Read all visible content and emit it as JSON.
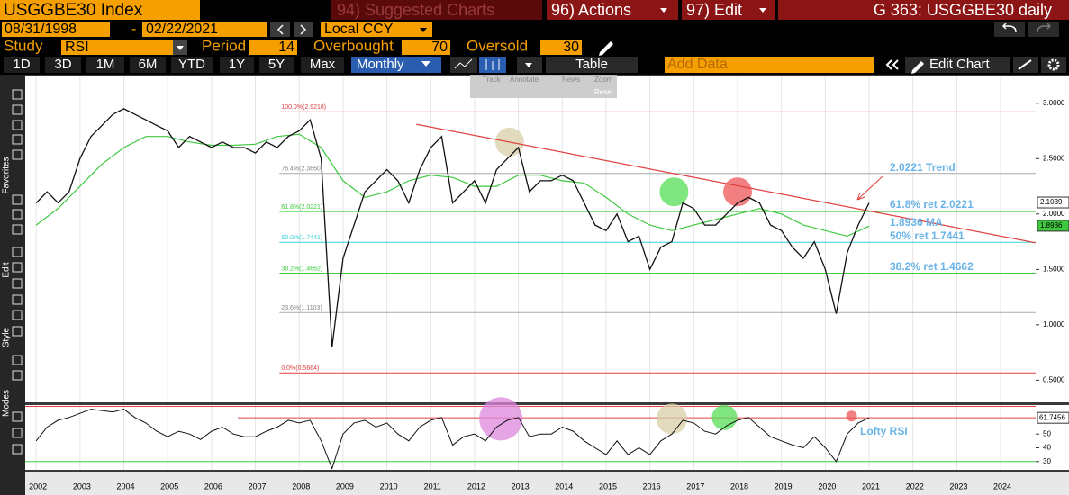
{
  "header": {
    "ticker": "USGGBE30 Index",
    "suggested": "94) Suggested Charts",
    "actions": "96) Actions",
    "edit": "97) Edit",
    "title": "G 363: USGGBE30 daily"
  },
  "dates": {
    "start": "08/31/1998",
    "separator": "-",
    "end": "02/22/2021",
    "currency": "Local CCY"
  },
  "study": {
    "label": "Study",
    "value": "RSI",
    "period_label": "Period",
    "period": "14",
    "overbought_label": "Overbought",
    "overbought": "70",
    "oversold_label": "Oversold",
    "oversold": "30"
  },
  "toolbar": {
    "ranges": [
      "1D",
      "3D",
      "1M",
      "6M",
      "YTD",
      "1Y",
      "5Y",
      "Max"
    ],
    "frequency": "Monthly",
    "table": "Table",
    "add_data": "Add Data",
    "edit_chart": "Edit Chart"
  },
  "mini_toolbar": [
    "Track",
    "Annotate",
    "News",
    "Zoom",
    "Reset"
  ],
  "sidebar": [
    "Favorites",
    "Edit",
    "Style",
    "Modes"
  ],
  "chart_data": [
    {
      "type": "line",
      "series": [
        {
          "color": "#111111",
          "x": [
            2002,
            2002.25,
            2002.5,
            2002.75,
            2003,
            2003.25,
            2003.5,
            2003.75,
            2004,
            2004.25,
            2004.5,
            2004.75,
            2005,
            2005.25,
            2005.5,
            2005.75,
            2006,
            2006.25,
            2006.5,
            2006.75,
            2007,
            2007.25,
            2007.5,
            2007.75,
            2008,
            2008.25,
            2008.5,
            2008.75,
            2009,
            2009.25,
            2009.5,
            2009.75,
            2010,
            2010.25,
            2010.5,
            2010.75,
            2011,
            2011.25,
            2011.5,
            2011.75,
            2012,
            2012.25,
            2012.5,
            2012.75,
            2013,
            2013.25,
            2013.5,
            2013.75,
            2014,
            2014.25,
            2014.5,
            2014.75,
            2015,
            2015.25,
            2015.5,
            2015.75,
            2016,
            2016.25,
            2016.5,
            2016.75,
            2017,
            2017.25,
            2017.5,
            2017.75,
            2018,
            2018.25,
            2018.5,
            2018.75,
            2019,
            2019.25,
            2019.5,
            2019.75,
            2020,
            2020.25,
            2020.5,
            2020.75,
            2021
          ],
          "values": [
            2.1,
            2.2,
            2.1,
            2.2,
            2.5,
            2.7,
            2.8,
            2.9,
            2.95,
            2.9,
            2.85,
            2.8,
            2.75,
            2.6,
            2.7,
            2.65,
            2.6,
            2.65,
            2.6,
            2.6,
            2.55,
            2.65,
            2.6,
            2.7,
            2.75,
            2.85,
            2.5,
            0.8,
            1.6,
            1.9,
            2.2,
            2.3,
            2.4,
            2.3,
            2.1,
            2.4,
            2.6,
            2.7,
            2.1,
            2.2,
            2.3,
            2.1,
            2.4,
            2.5,
            2.6,
            2.2,
            2.3,
            2.3,
            2.35,
            2.3,
            2.1,
            1.9,
            1.85,
            2.0,
            1.75,
            1.8,
            1.5,
            1.7,
            1.75,
            2.1,
            2.05,
            1.9,
            1.9,
            2.0,
            2.1,
            2.15,
            2.1,
            1.9,
            1.85,
            1.7,
            1.6,
            1.75,
            1.5,
            1.1,
            1.65,
            1.9,
            2.1
          ]
        },
        {
          "color": "#3ec93e",
          "x": [
            2002,
            2002.5,
            2003,
            2003.5,
            2004,
            2004.5,
            2005,
            2005.5,
            2006,
            2006.5,
            2007,
            2007.5,
            2008,
            2008.5,
            2009,
            2009.5,
            2010,
            2010.5,
            2011,
            2011.5,
            2012,
            2012.5,
            2013,
            2013.5,
            2014,
            2014.5,
            2015,
            2015.5,
            2016,
            2016.5,
            2017,
            2017.5,
            2018,
            2018.5,
            2019,
            2019.5,
            2020,
            2020.5,
            2021
          ],
          "values": [
            1.9,
            2.05,
            2.25,
            2.45,
            2.6,
            2.7,
            2.7,
            2.65,
            2.62,
            2.62,
            2.63,
            2.7,
            2.72,
            2.6,
            2.3,
            2.15,
            2.2,
            2.3,
            2.35,
            2.33,
            2.25,
            2.25,
            2.35,
            2.35,
            2.3,
            2.28,
            2.15,
            2.0,
            1.9,
            1.85,
            1.9,
            1.95,
            2.0,
            2.05,
            2.0,
            1.9,
            1.85,
            1.8,
            1.89
          ]
        }
      ],
      "xlim": [
        2001.75,
        2024.8
      ],
      "xticks": [
        2002,
        2003,
        2004,
        2005,
        2006,
        2007,
        2008,
        2009,
        2010,
        2011,
        2012,
        2013,
        2014,
        2015,
        2016,
        2017,
        2018,
        2019,
        2020,
        2021,
        2022,
        2023,
        2024
      ],
      "ylim": [
        0.3,
        3.25
      ],
      "yticks": [
        {
          "value": 0.5,
          "label": "0.5000"
        },
        {
          "value": 1.0,
          "label": "1.0000"
        },
        {
          "value": 1.5,
          "label": "1.5000"
        },
        {
          "value": 2.0,
          "label": "2.0000"
        },
        {
          "value": 2.5,
          "label": "2.5000"
        },
        {
          "value": 3.0,
          "label": "3.0000"
        }
      ],
      "fib_x": [
        2007.55,
        2024.8
      ],
      "fib_levels": [
        {
          "label": "100.0%(2.9218)",
          "value": 2.9218,
          "color": "#e04040"
        },
        {
          "label": "76.4%(2.3660)",
          "value": 2.366,
          "color": "#aaaaaa"
        },
        {
          "label": "61.8%(2.0221)",
          "value": 2.0221,
          "color": "#3ec93e"
        },
        {
          "label": "50.0%(1.7441)",
          "value": 1.7441,
          "color": "#36d0d8"
        },
        {
          "label": "38.2%(1.4662)",
          "value": 1.4662,
          "color": "#3ec93e"
        },
        {
          "label": "23.6%(1.1103)",
          "value": 1.1103,
          "color": "#aaaaaa"
        },
        {
          "label": "0.0%(0.5664)",
          "value": 0.5664,
          "color": "#e04040"
        }
      ],
      "trendline": {
        "x": [
          2010.67,
          2024.8
        ],
        "values": [
          2.81,
          1.74
        ],
        "color": "#e04040"
      },
      "highlights": [
        {
          "x": 2012.8,
          "y": 2.65,
          "color": "#d8cfa8"
        },
        {
          "x": 2016.55,
          "y": 2.2,
          "color": "#55dd55"
        },
        {
          "x": 2018.0,
          "y": 2.2,
          "color": "#ee5555"
        }
      ],
      "price_tags": [
        {
          "value": 2.1039,
          "color": "#ffffff"
        },
        {
          "value": 1.8936,
          "color": "#3ec93e"
        }
      ],
      "annotations": [
        "2.0221 Trend",
        "61.8% ret 2.0221",
        "1.8936 MA",
        "50% ret 1.7441",
        "38.2% ret 1.4662"
      ]
    },
    {
      "type": "line",
      "series": [
        {
          "color": "#111111",
          "x": [
            2002,
            2002.25,
            2002.5,
            2002.75,
            2003,
            2003.25,
            2003.5,
            2003.75,
            2004,
            2004.25,
            2004.5,
            2004.75,
            2005,
            2005.25,
            2005.5,
            2005.75,
            2006,
            2006.25,
            2006.5,
            2006.75,
            2007,
            2007.25,
            2007.5,
            2007.75,
            2008,
            2008.25,
            2008.5,
            2008.75,
            2009,
            2009.25,
            2009.5,
            2009.75,
            2010,
            2010.25,
            2010.5,
            2010.75,
            2011,
            2011.25,
            2011.5,
            2011.75,
            2012,
            2012.25,
            2012.5,
            2012.75,
            2013,
            2013.25,
            2013.5,
            2013.75,
            2014,
            2014.25,
            2014.5,
            2014.75,
            2015,
            2015.25,
            2015.5,
            2015.75,
            2016,
            2016.25,
            2016.5,
            2016.75,
            2017,
            2017.25,
            2017.5,
            2017.75,
            2018,
            2018.25,
            2018.5,
            2018.75,
            2019,
            2019.25,
            2019.5,
            2019.75,
            2020,
            2020.25,
            2020.5,
            2020.75,
            2021
          ],
          "values": [
            45,
            55,
            60,
            62,
            65,
            68,
            67,
            66,
            68,
            62,
            58,
            52,
            48,
            52,
            50,
            46,
            52,
            55,
            50,
            48,
            48,
            52,
            55,
            60,
            58,
            60,
            45,
            25,
            50,
            58,
            60,
            55,
            58,
            50,
            45,
            55,
            60,
            62,
            42,
            48,
            50,
            45,
            55,
            60,
            62,
            48,
            50,
            50,
            55,
            52,
            45,
            40,
            35,
            45,
            35,
            40,
            35,
            45,
            50,
            60,
            58,
            52,
            50,
            56,
            60,
            62,
            55,
            48,
            45,
            42,
            40,
            48,
            40,
            30,
            50,
            58,
            61.7456
          ]
        }
      ],
      "xlim": [
        2001.75,
        2024.8
      ],
      "xticks": [
        2002,
        2003,
        2004,
        2005,
        2006,
        2007,
        2008,
        2009,
        2010,
        2011,
        2012,
        2013,
        2014,
        2015,
        2016,
        2017,
        2018,
        2019,
        2020,
        2021,
        2022,
        2023,
        2024
      ],
      "ylim": [
        24,
        71
      ],
      "yticks": [
        30,
        40,
        50
      ],
      "levels": [
        {
          "value": 70,
          "color": "#e04040",
          "x_start": 2001.75
        },
        {
          "value": 30,
          "color": "#3ec93e",
          "x_start": 2001.75
        },
        {
          "value": 61.7456,
          "color": "#e04040",
          "x_start": 2006.6
        }
      ],
      "last_value": 61.7456,
      "highlights": [
        {
          "x": 2012.6,
          "y": 61,
          "color": "#dd88dd",
          "r": 24
        },
        {
          "x": 2016.5,
          "y": 61,
          "color": "#d8cfa8",
          "r": 17
        },
        {
          "x": 2017.7,
          "y": 62,
          "color": "#55dd55",
          "r": 14
        },
        {
          "x": 2020.6,
          "y": 63,
          "color": "#ee5555",
          "r": 6
        }
      ],
      "annotation": "Lofty RSI"
    }
  ]
}
